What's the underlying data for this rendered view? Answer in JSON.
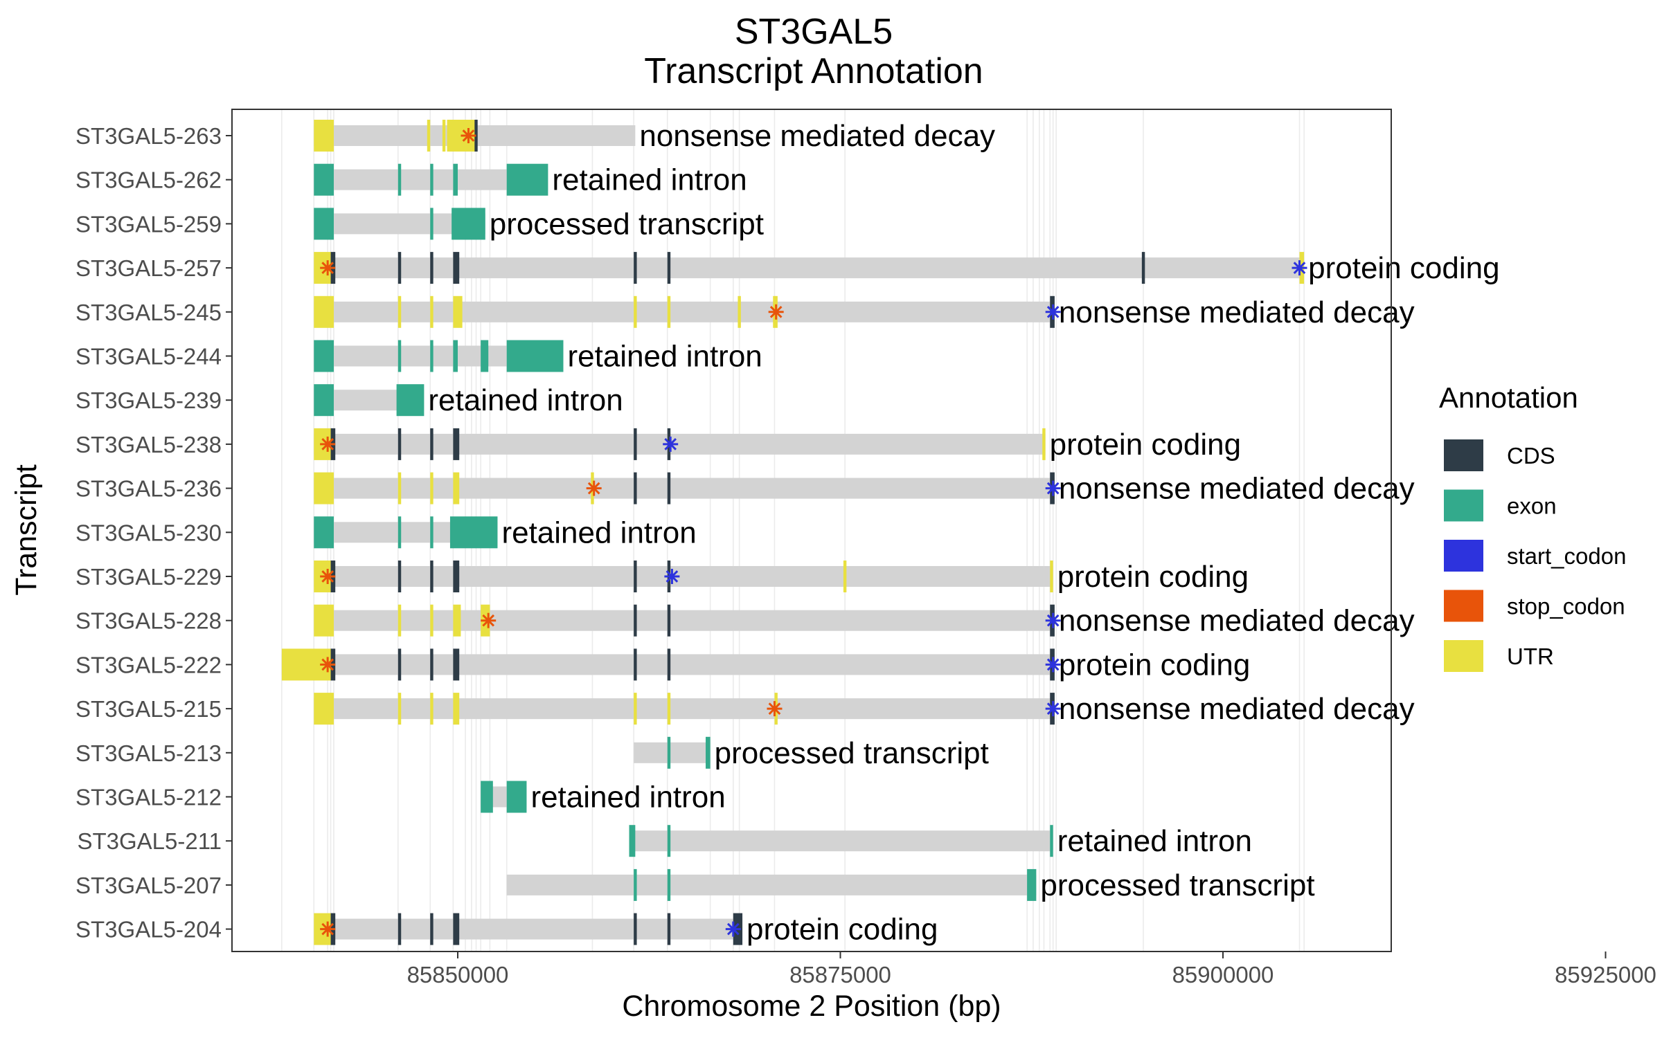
{
  "chart_data": {
    "type": "gene-transcript-track",
    "title": "ST3GAL5",
    "subtitle": "Transcript Annotation",
    "xlabel": "Chromosome 2 Position (bp)",
    "ylabel": "Transcript",
    "xlim": [
      85829000,
      85926000
    ],
    "x_ticks": [
      85850000,
      85875000,
      85900000,
      85925000
    ],
    "x_tick_labels": [
      "85850000",
      "85875000",
      "85900000",
      "85925000"
    ],
    "grid": true,
    "legend": {
      "title": "Annotation",
      "position": "right",
      "items": [
        {
          "label": "CDS",
          "color": "#2E3C47"
        },
        {
          "label": "exon",
          "color": "#33AA8C"
        },
        {
          "label": "start_codon",
          "color": "#2D33DD"
        },
        {
          "label": "stop_codon",
          "color": "#E8540A"
        },
        {
          "label": "UTR",
          "color": "#E8E040"
        }
      ]
    },
    "colors": {
      "CDS": "#2E3C47",
      "exon": "#33AA8C",
      "start_codon": "#2D33DD",
      "stop_codon": "#E8540A",
      "UTR": "#E8E040",
      "intron": "#D3D3D3"
    },
    "transcripts": [
      {
        "name": "ST3GAL5-263",
        "biotype": "nonsense mediated decay",
        "start": 85840600,
        "end": 85861600,
        "features": [
          [
            "UTR",
            85840600,
            85841900
          ],
          [
            "UTR",
            85848000,
            85848200
          ],
          [
            "UTR",
            85849000,
            85849200
          ],
          [
            "UTR",
            85849300,
            85851200
          ],
          [
            "CDS",
            85851100,
            85851300
          ]
        ],
        "stops": [
          85850700
        ],
        "starts": []
      },
      {
        "name": "ST3GAL5-262",
        "biotype": "retained intron",
        "start": 85840600,
        "end": 85855900,
        "features": [
          [
            "exon",
            85840600,
            85841900
          ],
          [
            "exon",
            85846100,
            85846300
          ],
          [
            "exon",
            85848200,
            85848400
          ],
          [
            "exon",
            85849700,
            85850000
          ],
          [
            "exon",
            85853200,
            85855900
          ]
        ],
        "stops": [],
        "starts": []
      },
      {
        "name": "ST3GAL5-259",
        "biotype": "processed transcript",
        "start": 85840600,
        "end": 85851800,
        "features": [
          [
            "exon",
            85840600,
            85841900
          ],
          [
            "exon",
            85848200,
            85848400
          ],
          [
            "exon",
            85849600,
            85851800
          ]
        ],
        "stops": [],
        "starts": []
      },
      {
        "name": "ST3GAL5-257",
        "biotype": "protein coding",
        "start": 85840600,
        "end": 85905300,
        "features": [
          [
            "UTR",
            85840600,
            85841700
          ],
          [
            "CDS",
            85841700,
            85842000
          ],
          [
            "CDS",
            85846100,
            85846300
          ],
          [
            "CDS",
            85848200,
            85848400
          ],
          [
            "CDS",
            85849700,
            85850100
          ],
          [
            "CDS",
            85861500,
            85861700
          ],
          [
            "CDS",
            85863700,
            85863900
          ],
          [
            "CDS",
            85894700,
            85894900
          ],
          [
            "UTR",
            85905000,
            85905300
          ]
        ],
        "stops": [
          85841500
        ],
        "starts": [
          85905000
        ]
      },
      {
        "name": "ST3GAL5-245",
        "biotype": "nonsense mediated decay",
        "start": 85840600,
        "end": 85889000,
        "features": [
          [
            "UTR",
            85840600,
            85841900
          ],
          [
            "UTR",
            85846100,
            85846300
          ],
          [
            "UTR",
            85848200,
            85848400
          ],
          [
            "UTR",
            85849700,
            85850300
          ],
          [
            "UTR",
            85861500,
            85861700
          ],
          [
            "UTR",
            85863700,
            85863900
          ],
          [
            "UTR",
            85868300,
            85868500
          ],
          [
            "UTR",
            85870600,
            85870900
          ],
          [
            "CDS",
            85888700,
            85889000
          ]
        ],
        "stops": [
          85870800
        ],
        "starts": [
          85888900
        ]
      },
      {
        "name": "ST3GAL5-244",
        "biotype": "retained intron",
        "start": 85840600,
        "end": 85856900,
        "features": [
          [
            "exon",
            85840600,
            85841900
          ],
          [
            "exon",
            85846100,
            85846300
          ],
          [
            "exon",
            85848200,
            85848400
          ],
          [
            "exon",
            85849700,
            85850000
          ],
          [
            "exon",
            85851500,
            85852000
          ],
          [
            "exon",
            85853200,
            85856900
          ]
        ],
        "stops": [],
        "starts": []
      },
      {
        "name": "ST3GAL5-239",
        "biotype": "retained intron",
        "start": 85840600,
        "end": 85847800,
        "features": [
          [
            "exon",
            85840600,
            85841900
          ],
          [
            "exon",
            85846000,
            85847800
          ]
        ],
        "stops": [],
        "starts": []
      },
      {
        "name": "ST3GAL5-238",
        "biotype": "protein coding",
        "start": 85840600,
        "end": 85888400,
        "features": [
          [
            "UTR",
            85840600,
            85841700
          ],
          [
            "CDS",
            85841700,
            85842000
          ],
          [
            "CDS",
            85846100,
            85846300
          ],
          [
            "CDS",
            85848200,
            85848400
          ],
          [
            "CDS",
            85849700,
            85850100
          ],
          [
            "CDS",
            85861500,
            85861700
          ],
          [
            "CDS",
            85863700,
            85863900
          ],
          [
            "UTR",
            85888200,
            85888400
          ]
        ],
        "stops": [
          85841500
        ],
        "starts": [
          85863900
        ]
      },
      {
        "name": "ST3GAL5-236",
        "biotype": "nonsense mediated decay",
        "start": 85840600,
        "end": 85889000,
        "features": [
          [
            "UTR",
            85840600,
            85841900
          ],
          [
            "UTR",
            85846100,
            85846300
          ],
          [
            "UTR",
            85848200,
            85848400
          ],
          [
            "UTR",
            85849700,
            85850100
          ],
          [
            "UTR",
            85858700,
            85858900
          ],
          [
            "CDS",
            85861500,
            85861700
          ],
          [
            "CDS",
            85863700,
            85863900
          ],
          [
            "CDS",
            85888700,
            85889000
          ]
        ],
        "stops": [
          85858900
        ],
        "starts": [
          85888900
        ]
      },
      {
        "name": "ST3GAL5-230",
        "biotype": "retained intron",
        "start": 85840600,
        "end": 85852600,
        "features": [
          [
            "exon",
            85840600,
            85841900
          ],
          [
            "exon",
            85846100,
            85846300
          ],
          [
            "exon",
            85848200,
            85848400
          ],
          [
            "exon",
            85849500,
            85852600
          ]
        ],
        "stops": [],
        "starts": []
      },
      {
        "name": "ST3GAL5-229",
        "biotype": "protein coding",
        "start": 85840600,
        "end": 85888900,
        "features": [
          [
            "UTR",
            85840600,
            85841700
          ],
          [
            "CDS",
            85841700,
            85842000
          ],
          [
            "CDS",
            85846100,
            85846300
          ],
          [
            "CDS",
            85848200,
            85848400
          ],
          [
            "CDS",
            85849700,
            85850100
          ],
          [
            "CDS",
            85861500,
            85861700
          ],
          [
            "CDS",
            85863700,
            85863900
          ],
          [
            "UTR",
            85875200,
            85875400
          ],
          [
            "UTR",
            85888700,
            85888900
          ]
        ],
        "stops": [
          85841500
        ],
        "starts": [
          85864000
        ]
      },
      {
        "name": "ST3GAL5-228",
        "biotype": "nonsense mediated decay",
        "start": 85840600,
        "end": 85889000,
        "features": [
          [
            "UTR",
            85840600,
            85841900
          ],
          [
            "UTR",
            85846100,
            85846300
          ],
          [
            "UTR",
            85848200,
            85848400
          ],
          [
            "UTR",
            85849700,
            85850200
          ],
          [
            "UTR",
            85851500,
            85852100
          ],
          [
            "CDS",
            85861500,
            85861700
          ],
          [
            "CDS",
            85863700,
            85863900
          ],
          [
            "CDS",
            85888700,
            85889000
          ]
        ],
        "stops": [
          85852000
        ],
        "starts": [
          85888900
        ]
      },
      {
        "name": "ST3GAL5-222",
        "biotype": "protein coding",
        "start": 85838500,
        "end": 85889000,
        "features": [
          [
            "UTR",
            85838500,
            85841700
          ],
          [
            "CDS",
            85841700,
            85842000
          ],
          [
            "CDS",
            85846100,
            85846300
          ],
          [
            "CDS",
            85848200,
            85848400
          ],
          [
            "CDS",
            85849700,
            85850100
          ],
          [
            "CDS",
            85861500,
            85861700
          ],
          [
            "CDS",
            85863700,
            85863900
          ],
          [
            "CDS",
            85888700,
            85889000
          ]
        ],
        "stops": [
          85841500
        ],
        "starts": [
          85888900
        ]
      },
      {
        "name": "ST3GAL5-215",
        "biotype": "nonsense mediated decay",
        "start": 85840600,
        "end": 85889000,
        "features": [
          [
            "UTR",
            85840600,
            85841900
          ],
          [
            "UTR",
            85846100,
            85846300
          ],
          [
            "UTR",
            85848200,
            85848400
          ],
          [
            "UTR",
            85849700,
            85850100
          ],
          [
            "UTR",
            85861500,
            85861700
          ],
          [
            "UTR",
            85863700,
            85863900
          ],
          [
            "UTR",
            85870700,
            85870900
          ],
          [
            "CDS",
            85888700,
            85889000
          ]
        ],
        "stops": [
          85870700
        ],
        "starts": [
          85888900
        ]
      },
      {
        "name": "ST3GAL5-213",
        "biotype": "processed transcript",
        "start": 85861500,
        "end": 85866500,
        "features": [
          [
            "exon",
            85863700,
            85863900
          ],
          [
            "exon",
            85866200,
            85866500
          ]
        ],
        "stops": [],
        "starts": []
      },
      {
        "name": "ST3GAL5-212",
        "biotype": "retained intron",
        "start": 85851500,
        "end": 85854500,
        "features": [
          [
            "exon",
            85851500,
            85852300
          ],
          [
            "exon",
            85853200,
            85854500
          ]
        ],
        "stops": [],
        "starts": []
      },
      {
        "name": "ST3GAL5-211",
        "biotype": "retained intron",
        "start": 85861200,
        "end": 85888900,
        "features": [
          [
            "exon",
            85861200,
            85861600
          ],
          [
            "exon",
            85863700,
            85863900
          ],
          [
            "exon",
            85888700,
            85888900
          ]
        ],
        "stops": [],
        "starts": []
      },
      {
        "name": "ST3GAL5-207",
        "biotype": "processed transcript",
        "start": 85853200,
        "end": 85887800,
        "features": [
          [
            "exon",
            85861500,
            85861700
          ],
          [
            "exon",
            85863700,
            85863900
          ],
          [
            "exon",
            85887200,
            85887800
          ]
        ],
        "stops": [],
        "starts": []
      },
      {
        "name": "ST3GAL5-204",
        "biotype": "protein coding",
        "start": 85840600,
        "end": 85868600,
        "features": [
          [
            "UTR",
            85840600,
            85841700
          ],
          [
            "CDS",
            85841700,
            85842000
          ],
          [
            "CDS",
            85846100,
            85846300
          ],
          [
            "CDS",
            85848200,
            85848400
          ],
          [
            "CDS",
            85849700,
            85850100
          ],
          [
            "CDS",
            85861500,
            85861700
          ],
          [
            "CDS",
            85863700,
            85863900
          ],
          [
            "CDS",
            85868000,
            85868600
          ]
        ],
        "stops": [
          85841500
        ],
        "starts": [
          85868000
        ]
      }
    ],
    "gridlines_x": [
      85838500,
      85840600,
      85841500,
      85841700,
      85841900,
      85846100,
      85848200,
      85849700,
      85850500,
      85850900,
      85851200,
      85851500,
      85852100,
      85853200,
      85858800,
      85861500,
      85863700,
      85866500,
      85868000,
      85868400,
      85870700,
      85875300,
      85887200,
      85887600,
      85888000,
      85888300,
      85888700,
      85888900,
      85889100,
      85894800,
      85905000,
      85905300
    ]
  }
}
